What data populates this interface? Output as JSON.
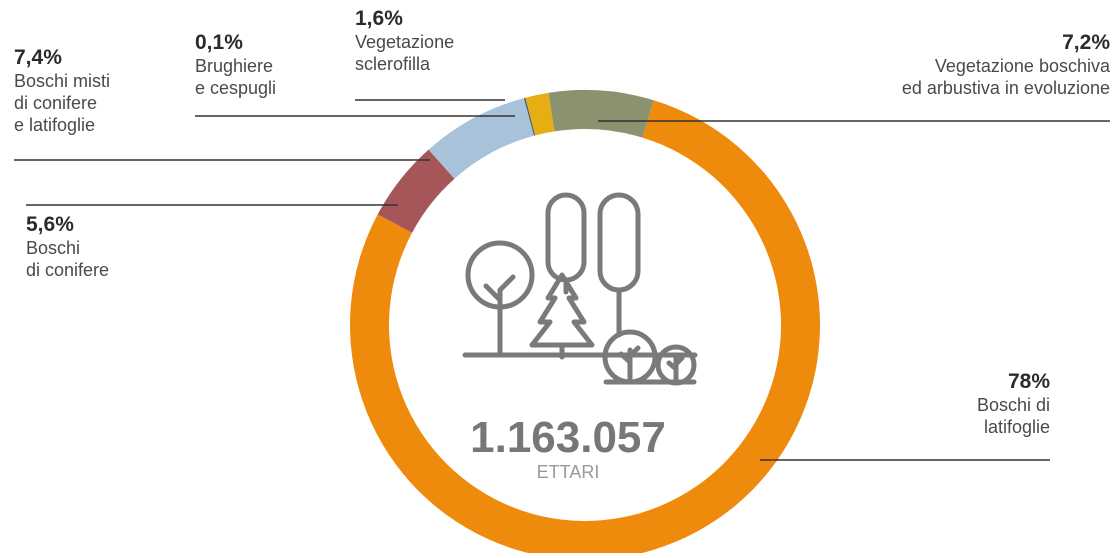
{
  "chart_data": {
    "type": "pie",
    "center": {
      "value": "1.163.057",
      "unit": "ETTARI"
    },
    "slices": [
      {
        "pct": "78%",
        "value": 78,
        "lines": [
          "Boschi di",
          "latifoglie"
        ],
        "color": "#EE8A0C"
      },
      {
        "pct": "5,6%",
        "value": 5.6,
        "lines": [
          "Boschi",
          "di conifere"
        ],
        "color": "#A65659"
      },
      {
        "pct": "7,4%",
        "value": 7.4,
        "lines": [
          "Boschi misti",
          "di conifere",
          "e latifoglie"
        ],
        "color": "#A8C3D9"
      },
      {
        "pct": "0,1%",
        "value": 0.1,
        "lines": [
          "Brughiere",
          "e cespugli"
        ],
        "color": "#4A5E73"
      },
      {
        "pct": "1,6%",
        "value": 1.6,
        "lines": [
          "Vegetazione",
          "sclerofilla"
        ],
        "color": "#E6AE12"
      },
      {
        "pct": "7,2%",
        "value": 7.2,
        "lines": [
          "Vegetazione boschiva",
          "ed arbustiva in evoluzione"
        ],
        "color": "#8A9270"
      }
    ]
  }
}
